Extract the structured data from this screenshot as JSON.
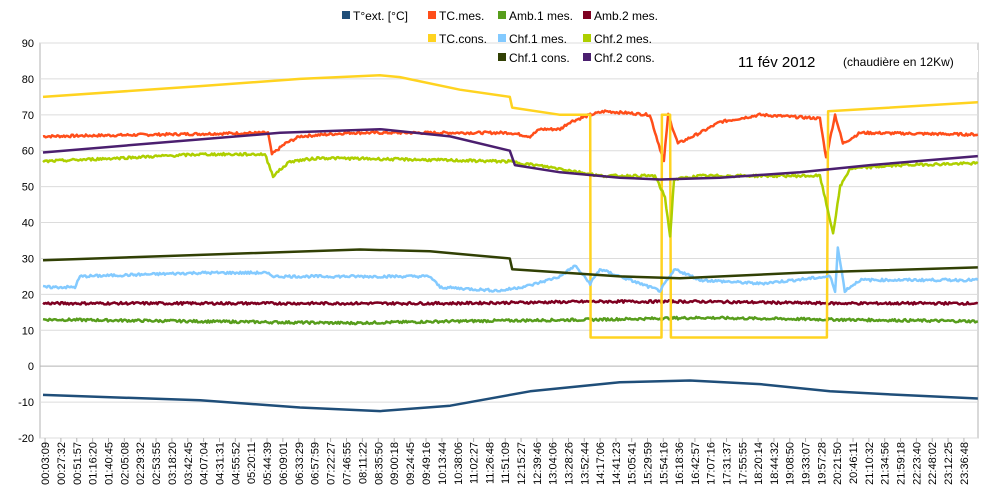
{
  "chart_data": {
    "type": "line",
    "title": "11 fév 2012",
    "subtitle": "(chaudière en 12Kw)",
    "xlabel": "",
    "ylabel": "",
    "ylim": [
      -20,
      90
    ],
    "yticks": [
      90,
      80,
      70,
      60,
      50,
      40,
      30,
      20,
      10,
      0,
      -10,
      -20
    ],
    "xlim_hours": [
      0,
      24
    ],
    "grid": true,
    "legend_position": "top",
    "x_tick_labels": [
      "00:03:09",
      "00:27:32",
      "00:51:57",
      "01:16:20",
      "01:40:45",
      "02:05:08",
      "02:29:32",
      "02:53:55",
      "03:18:20",
      "03:42:45",
      "04:07:04",
      "04:31:31",
      "04:55:52",
      "05:20:11",
      "05:44:39",
      "06:09:01",
      "06:33:29",
      "06:57:59",
      "07:22:27",
      "07:46:55",
      "08:11:22",
      "08:35:50",
      "09:00:18",
      "09:24:45",
      "09:49:16",
      "10:13:44",
      "10:38:06",
      "11:02:27",
      "11:26:48",
      "11:51:09",
      "12:15:27",
      "12:39:46",
      "13:04:06",
      "13:28:26",
      "13:52:44",
      "14:17:06",
      "14:41:23",
      "15:05:41",
      "15:29:59",
      "15:54:16",
      "16:18:36",
      "16:42:57",
      "17:07:16",
      "17:31:37",
      "17:55:55",
      "18:20:14",
      "18:44:32",
      "19:08:50",
      "19:33:07",
      "19:57:28",
      "20:21:50",
      "20:46:11",
      "21:10:32",
      "21:34:56",
      "21:59:18",
      "22:23:40",
      "22:48:02",
      "23:12:25",
      "23:36:48"
    ],
    "series": [
      {
        "name": "T°ext. [°C]",
        "color": "#1f4e79",
        "noisy": false,
        "x": [
          0,
          4.03,
          6.59,
          8.64,
          10.44,
          12.49,
          14.79,
          16.59,
          18.38,
          20.18,
          21.97,
          23.97
        ],
        "y": [
          -8,
          -9.5,
          -11.5,
          -12.5,
          -11,
          -7,
          -4.5,
          -4,
          -5,
          -7,
          -8,
          -9
        ]
      },
      {
        "name": "TC.mes.",
        "color": "#ff4e1a",
        "noisy": true,
        "x": [
          0,
          5.77,
          5.87,
          6.21,
          6.59,
          7.87,
          11.97,
          12.49,
          12.74,
          13.26,
          13.51,
          14.03,
          14.41,
          15.56,
          15.92,
          16.03,
          16.28,
          16.85,
          17.36,
          18.38,
          19.92,
          20.08,
          20.31,
          20.51,
          20.95,
          23.97
        ],
        "y": [
          64,
          65,
          59,
          62,
          64,
          65,
          65,
          64,
          66,
          66,
          68,
          70,
          71,
          70,
          57,
          70,
          62,
          65,
          68,
          70,
          69,
          58,
          70,
          62,
          65,
          64.5
        ]
      },
      {
        "name": "Amb.1 mes.",
        "color": "#579d1c",
        "noisy": true,
        "x": [
          0,
          7.87,
          10.44,
          14.28,
          16.85,
          20.18,
          23.97
        ],
        "y": [
          13,
          12,
          12.5,
          13,
          13.5,
          13,
          12.5
        ]
      },
      {
        "name": "Amb.2 mes.",
        "color": "#7e0021",
        "noisy": true,
        "x": [
          0,
          7.87,
          10.44,
          14.28,
          16.85,
          20.18,
          23.97
        ],
        "y": [
          17.5,
          17.5,
          17.5,
          18,
          18,
          17.5,
          17.5
        ]
      },
      {
        "name": "TC.cons.",
        "color": "#ffd320",
        "noisy": false,
        "x": [
          0,
          4.03,
          6.59,
          8.64,
          9.15,
          10.69,
          11.97,
          12.03,
          13.26,
          14.03,
          14.04,
          15.86,
          15.87,
          16.08,
          16.1,
          20.1,
          20.13,
          20.95,
          23.97
        ],
        "y": [
          75,
          78,
          80,
          81,
          80.5,
          77,
          75,
          72,
          70,
          70,
          8,
          8,
          70,
          70,
          8,
          8,
          71,
          71.5,
          73.5
        ]
      },
      {
        "name": "Chf.1 mes.",
        "color": "#83caff",
        "noisy": true,
        "x": [
          0,
          0.82,
          0.95,
          4.03,
          5.69,
          5.95,
          9.92,
          10.18,
          11.72,
          12.49,
          13.26,
          13.64,
          14.03,
          14.28,
          15.82,
          16.21,
          16.85,
          18.38,
          20.18,
          20.31,
          20.38,
          20.56,
          20.95,
          23.97
        ],
        "y": [
          22,
          22,
          25,
          26,
          26,
          25,
          25,
          22,
          21,
          22.5,
          25,
          28,
          23,
          27,
          21,
          27,
          24,
          23,
          25,
          21,
          33,
          21,
          24,
          24
        ]
      },
      {
        "name": "Chf.2 mes.",
        "color": "#aecf00",
        "noisy": true,
        "x": [
          0,
          4.03,
          5.69,
          5.9,
          6.33,
          7.1,
          9.67,
          11.97,
          13.26,
          14.28,
          15.69,
          15.95,
          16.08,
          16.18,
          16.85,
          19.92,
          20.26,
          20.44,
          20.69,
          21.97,
          23.97
        ],
        "y": [
          57,
          59,
          59,
          53,
          57,
          58,
          57.5,
          57,
          55,
          53,
          53,
          47,
          36,
          52,
          53,
          53,
          37,
          50,
          55,
          56,
          56.5
        ]
      },
      {
        "name": "Chf.1 cons.",
        "color": "#314004",
        "noisy": false,
        "x": [
          0,
          4.03,
          8.13,
          9.92,
          11.97,
          12.03,
          14.79,
          16.33,
          19.41,
          23.97
        ],
        "y": [
          29.5,
          31,
          32.5,
          32,
          30,
          27,
          25,
          24.5,
          26,
          27.5
        ]
      },
      {
        "name": "Chf.2 cons.",
        "color": "#4b1f6f",
        "noisy": false,
        "x": [
          0,
          2.74,
          6.08,
          8.64,
          10.44,
          11.97,
          12.1,
          13.26,
          14.79,
          15.82,
          17.36,
          19.41,
          21.21,
          23.97
        ],
        "y": [
          59.5,
          62,
          65,
          66,
          64,
          60,
          56,
          54,
          52.5,
          52,
          52.5,
          54,
          56,
          58.5
        ]
      }
    ],
    "legend_layout": [
      [
        0,
        1,
        2,
        3
      ],
      [
        4,
        5,
        6
      ],
      [
        7,
        8
      ]
    ]
  }
}
